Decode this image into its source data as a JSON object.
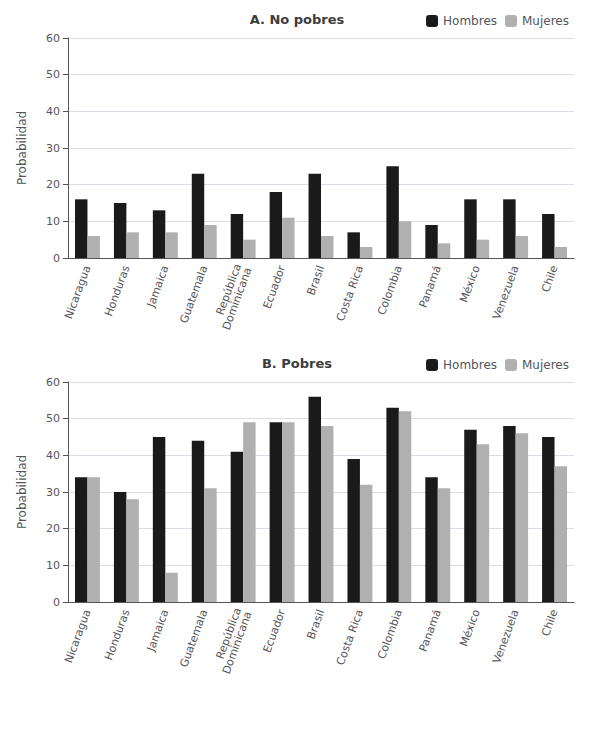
{
  "chart_data": [
    {
      "type": "bar",
      "title": "A. No pobres",
      "ylabel": "Probabilidad",
      "categories": [
        "Nicaragua",
        "Honduras",
        "Jamaica",
        "Guatemala",
        "República\nDominicana",
        "Ecuador",
        "Brasil",
        "Costa Rica",
        "Colombia",
        "Panamá",
        "México",
        "Venezuela",
        "Chile"
      ],
      "series": [
        {
          "name": "Hombres",
          "color": "#1a1a1a",
          "values": [
            16,
            15,
            13,
            23,
            12,
            18,
            23,
            7,
            25,
            9,
            16,
            16,
            12
          ]
        },
        {
          "name": "Mujeres",
          "color": "#b0b0b0",
          "values": [
            6,
            7,
            7,
            9,
            5,
            11,
            6,
            3,
            10,
            4,
            5,
            6,
            3
          ]
        }
      ],
      "ylim": [
        0,
        60
      ],
      "yticks": [
        0,
        10,
        20,
        30,
        40,
        50,
        60
      ],
      "grid": true,
      "legend": "upper right"
    },
    {
      "type": "bar",
      "title": "B. Pobres",
      "ylabel": "Probabilidad",
      "categories": [
        "Nicaragua",
        "Honduras",
        "Jamaica",
        "Guatemala",
        "República\nDominicana",
        "Ecuador",
        "Brasil",
        "Costa Rica",
        "Colombia",
        "Panamá",
        "México",
        "Venezuela",
        "Chile"
      ],
      "series": [
        {
          "name": "Hombres",
          "color": "#1a1a1a",
          "values": [
            34,
            30,
            45,
            44,
            41,
            49,
            56,
            39,
            53,
            34,
            47,
            48,
            45
          ]
        },
        {
          "name": "Mujeres",
          "color": "#b0b0b0",
          "values": [
            34,
            28,
            8,
            31,
            49,
            49,
            48,
            32,
            52,
            31,
            43,
            46,
            37
          ]
        }
      ],
      "ylim": [
        0,
        60
      ],
      "yticks": [
        0,
        10,
        20,
        30,
        40,
        50,
        60
      ],
      "grid": true,
      "legend": "upper right"
    }
  ]
}
